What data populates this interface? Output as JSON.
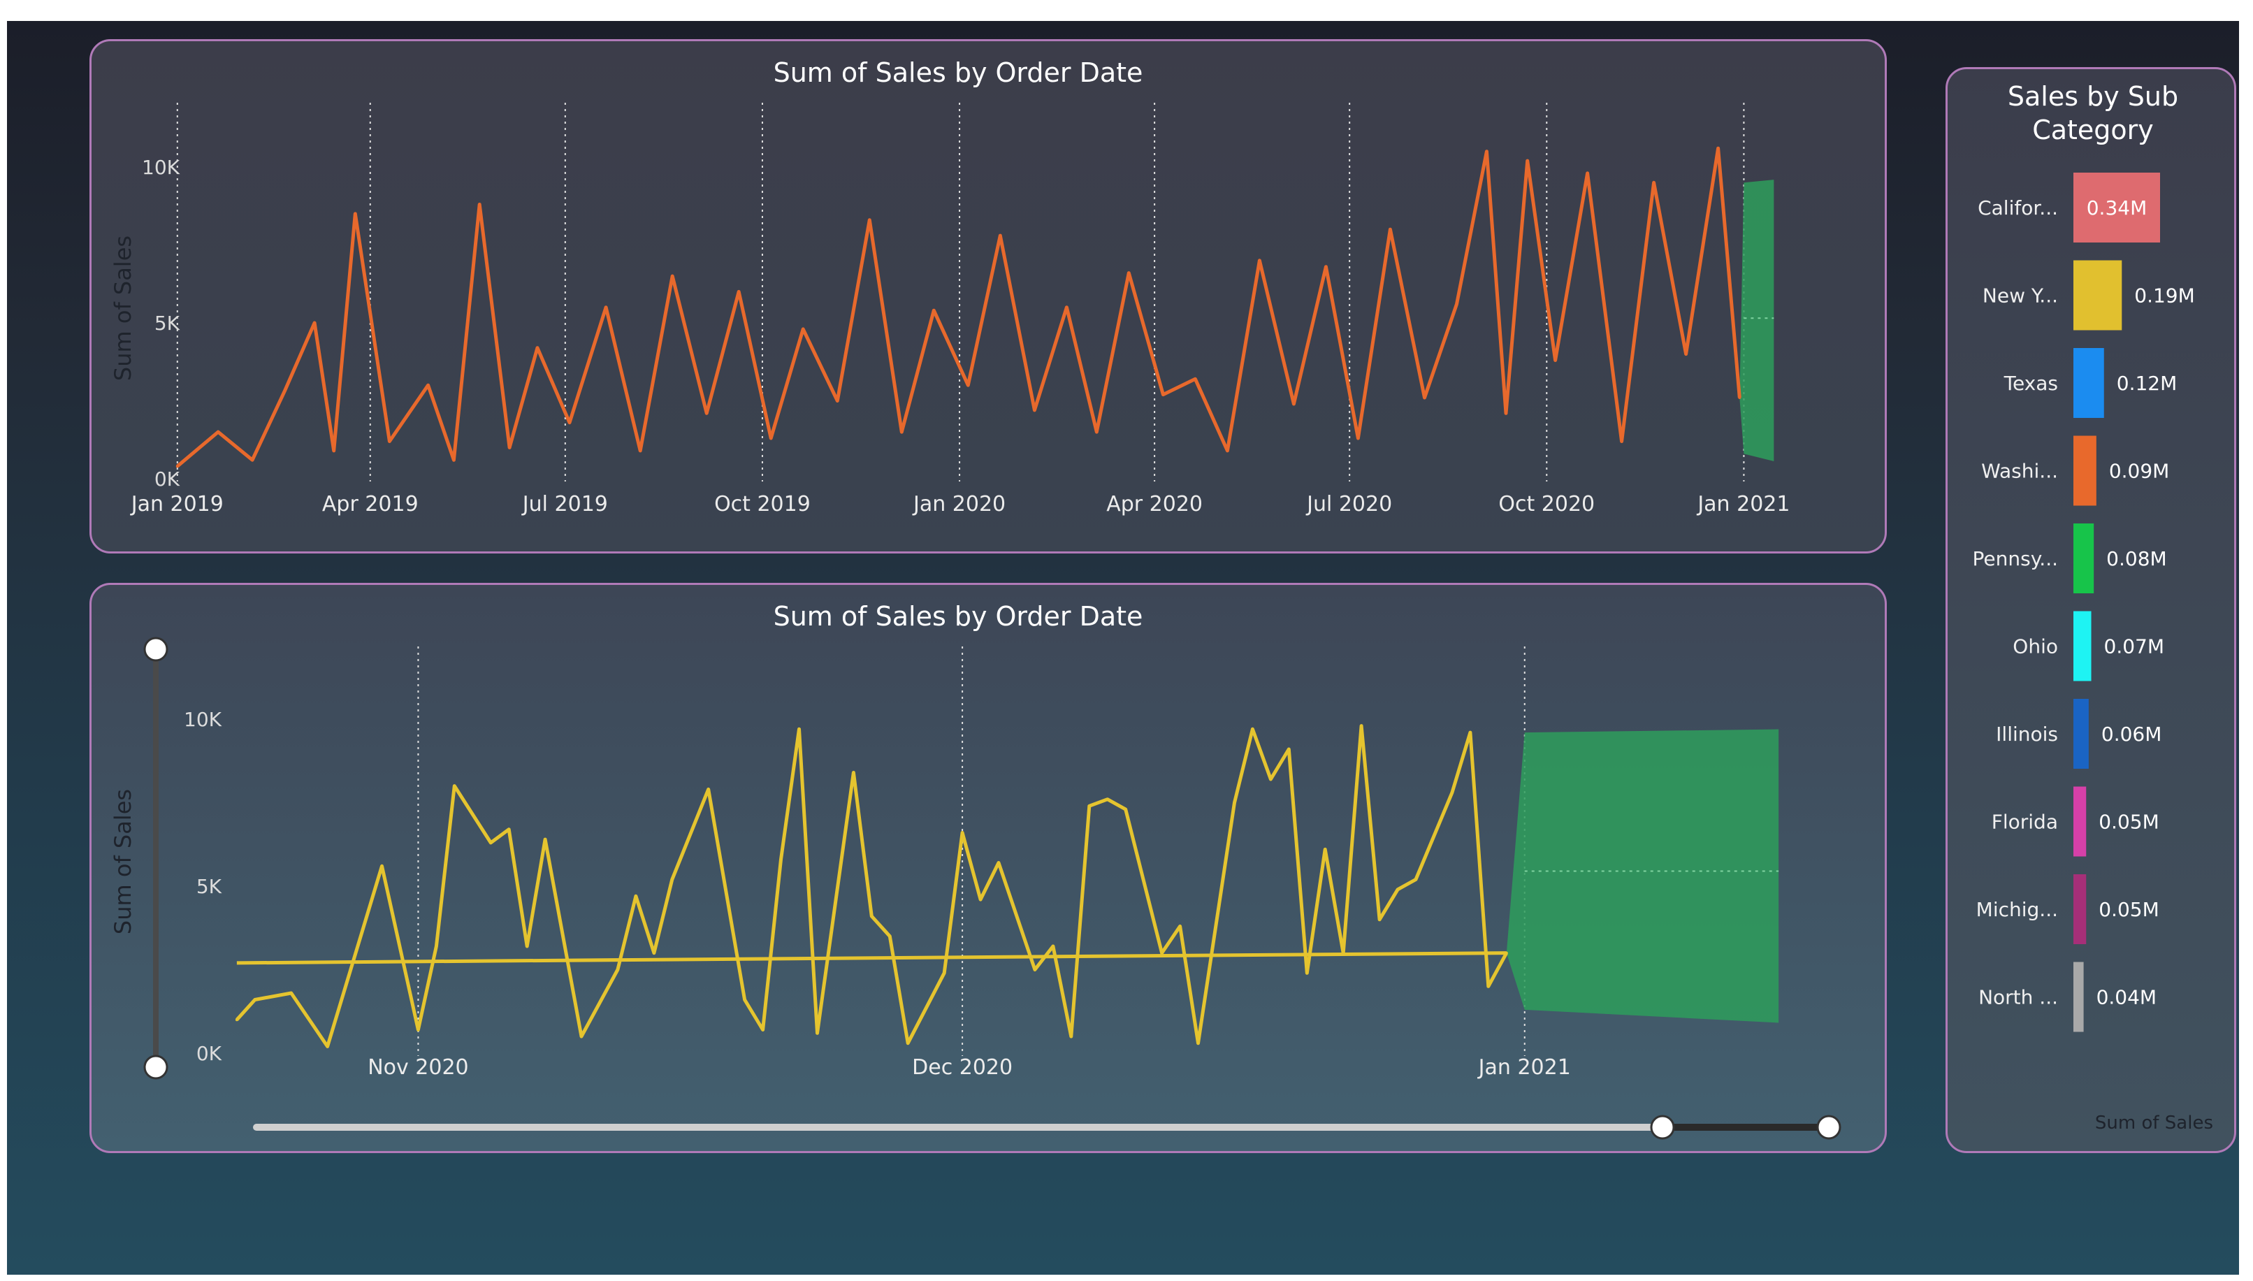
{
  "chart_data": [
    {
      "type": "line",
      "title": "Sum of Sales by Order Date",
      "ylabel": "Sum of Sales",
      "xlabel": "",
      "x_ticks": [
        "Jan 2019",
        "Apr 2019",
        "Jul 2019",
        "Oct 2019",
        "Jan 2020",
        "Apr 2020",
        "Jul 2020",
        "Oct 2020",
        "Jan 2021"
      ],
      "y_ticks": [
        "0K",
        "5K",
        "10K"
      ],
      "ylim": [
        0,
        10000
      ],
      "grid": "vertical dotted at x ticks",
      "series": [
        {
          "color": "#e8692c",
          "x": [
            "2019-01-01",
            "2019-01-20",
            "2019-02-05",
            "2019-02-20",
            "2019-03-06",
            "2019-03-15",
            "2019-03-25",
            "2019-04-10",
            "2019-04-28",
            "2019-05-10",
            "2019-05-22",
            "2019-06-05",
            "2019-06-18",
            "2019-07-03",
            "2019-07-20",
            "2019-08-05",
            "2019-08-20",
            "2019-09-05",
            "2019-09-20",
            "2019-10-05",
            "2019-10-20",
            "2019-11-05",
            "2019-11-20",
            "2019-12-05",
            "2019-12-20",
            "2020-01-05",
            "2020-01-20",
            "2020-02-05",
            "2020-02-20",
            "2020-03-05",
            "2020-03-20",
            "2020-04-05",
            "2020-04-20",
            "2020-05-05",
            "2020-05-20",
            "2020-06-05",
            "2020-06-20",
            "2020-07-05",
            "2020-07-20",
            "2020-08-05",
            "2020-08-20",
            "2020-09-03",
            "2020-09-12",
            "2020-09-22",
            "2020-10-05",
            "2020-10-20",
            "2020-11-05",
            "2020-11-20",
            "2020-12-05",
            "2020-12-20",
            "2020-12-30"
          ],
          "values": [
            400,
            1500,
            600,
            2800,
            5000,
            900,
            8500,
            1200,
            3000,
            600,
            8800,
            1000,
            4200,
            1800,
            5500,
            900,
            6500,
            2100,
            6000,
            1300,
            4800,
            2500,
            8300,
            1500,
            5400,
            3000,
            7800,
            2200,
            5500,
            1500,
            6600,
            2700,
            3200,
            900,
            7000,
            2400,
            6800,
            1300,
            8000,
            2600,
            5600,
            10500,
            2100,
            10200,
            3800,
            9800,
            1200,
            9500,
            4000,
            10600,
            2600
          ]
        }
      ],
      "forecast": {
        "color": "#2e9e5c",
        "start": "2021-01-01",
        "end": "2021-01-15",
        "lower": 800,
        "upper": 9500
      }
    },
    {
      "type": "line",
      "title": "Sum of Sales by Order Date",
      "ylabel": "Sum of Sales",
      "xlabel": "",
      "x_ticks": [
        "Nov 2020",
        "Dec 2020",
        "Jan 2021"
      ],
      "y_ticks": [
        "0K",
        "5K",
        "10K"
      ],
      "ylim": [
        0,
        10000
      ],
      "grid": "vertical dotted at x ticks",
      "series": [
        {
          "color": "#e5c42f",
          "x": [
            "2020-10-22",
            "2020-10-23",
            "2020-10-25",
            "2020-10-27",
            "2020-10-30",
            "2020-11-01",
            "2020-11-02",
            "2020-11-03",
            "2020-11-05",
            "2020-11-06",
            "2020-11-07",
            "2020-11-08",
            "2020-11-10",
            "2020-11-12",
            "2020-11-13",
            "2020-11-14",
            "2020-11-15",
            "2020-11-17",
            "2020-11-19",
            "2020-11-20",
            "2020-11-21",
            "2020-11-22",
            "2020-11-23",
            "2020-11-25",
            "2020-11-26",
            "2020-11-27",
            "2020-11-28",
            "2020-11-30",
            "2020-12-01",
            "2020-12-02",
            "2020-12-03",
            "2020-12-05",
            "2020-12-06",
            "2020-12-07",
            "2020-12-08",
            "2020-12-09",
            "2020-12-10",
            "2020-12-12",
            "2020-12-13",
            "2020-12-14",
            "2020-12-16",
            "2020-12-17",
            "2020-12-18",
            "2020-12-19",
            "2020-12-20",
            "2020-12-21",
            "2020-12-22",
            "2020-12-23",
            "2020-12-24",
            "2020-12-25",
            "2020-12-26",
            "2020-12-28",
            "2020-12-29",
            "2020-12-30",
            "2020-12-31"
          ],
          "values": [
            1000,
            1600,
            1800,
            200,
            5600,
            700,
            3200,
            8000,
            6300,
            6700,
            3200,
            6400,
            500,
            2500,
            4700,
            3000,
            5200,
            7900,
            1600,
            700,
            5800,
            9700,
            600,
            8400,
            4100,
            3500,
            300,
            2400,
            6600,
            4600,
            5700,
            2500,
            3200,
            500,
            7400,
            7600,
            7300,
            3000,
            3800,
            300,
            7500,
            9700,
            8200,
            9100,
            2400,
            6100,
            3000,
            9800,
            4000,
            4900,
            5200,
            7800,
            9600,
            2000,
            3000
          ]
        },
        {
          "name_hidden": "trend",
          "color": "#e5c42f",
          "x": [
            "2020-10-22",
            "2020-12-31"
          ],
          "values": [
            2700,
            3000
          ]
        }
      ],
      "forecast": {
        "color": "#2e9e5c",
        "start": "2021-01-01",
        "end": "2021-01-15",
        "lower": 1300,
        "upper": 9600
      }
    },
    {
      "type": "bar",
      "title": "Sales by Sub Category",
      "xlabel": "Sum of Sales",
      "ylabel": "",
      "orientation": "horizontal",
      "categories": [
        "Califor...",
        "New Y...",
        "Texas",
        "Washi...",
        "Pennsy...",
        "Ohio",
        "Illinois",
        "Florida",
        "Michig...",
        "North ..."
      ],
      "values": [
        0.34,
        0.19,
        0.12,
        0.09,
        0.08,
        0.07,
        0.06,
        0.05,
        0.05,
        0.04
      ],
      "labels": [
        "0.34M",
        "0.19M",
        "0.12M",
        "0.09M",
        "0.08M",
        "0.07M",
        "0.06M",
        "0.05M",
        "0.05M",
        "0.04M"
      ],
      "colors": [
        "#de6b6f",
        "#e1c02f",
        "#1b8cf0",
        "#e8692c",
        "#17c44a",
        "#1ef3f3",
        "#1a64c4",
        "#d640a8",
        "#a62f78",
        "#a9a9a9"
      ]
    }
  ],
  "slider": {
    "value_range": [
      0,
      10000
    ]
  },
  "date_range": {
    "start": "2020-10-22",
    "end": "2021-01-15"
  }
}
